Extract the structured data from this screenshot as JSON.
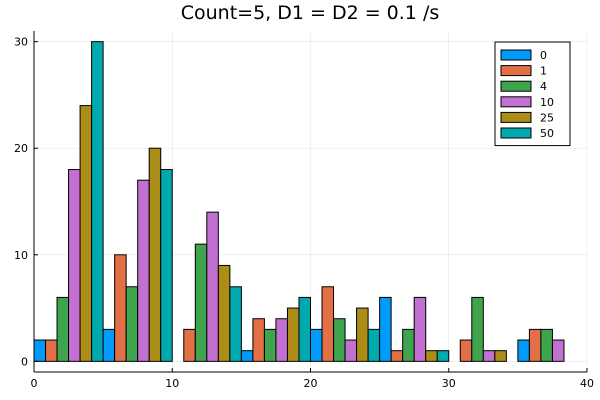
{
  "chart_data": {
    "type": "bar",
    "title": "Count=5, D1 = D2 = 0.1 /s",
    "xlabel": "",
    "ylabel": "",
    "xlim": [
      0,
      40
    ],
    "ylim": [
      -1,
      31
    ],
    "x_ticks": [
      0,
      10,
      20,
      30,
      40
    ],
    "y_ticks": [
      0,
      10,
      20,
      30
    ],
    "grid": true,
    "legend_position": "top-right",
    "bin_width": 5,
    "bin_starts": [
      0,
      5,
      10,
      15,
      20,
      25,
      30,
      35
    ],
    "series": [
      {
        "name": "0",
        "color": "#009AFA",
        "values": [
          2,
          3,
          0,
          1,
          3,
          6,
          0,
          2
        ]
      },
      {
        "name": "1",
        "color": "#E26F46",
        "values": [
          2,
          10,
          3,
          4,
          7,
          1,
          2,
          3
        ]
      },
      {
        "name": "4",
        "color": "#3EA44E",
        "values": [
          6,
          7,
          11,
          3,
          4,
          3,
          6,
          3
        ]
      },
      {
        "name": "10",
        "color": "#C271D2",
        "values": [
          18,
          17,
          14,
          4,
          2,
          6,
          1,
          2
        ]
      },
      {
        "name": "25",
        "color": "#AC8D18",
        "values": [
          24,
          20,
          9,
          5,
          5,
          1,
          1,
          0
        ]
      },
      {
        "name": "50",
        "color": "#00A9AD",
        "values": [
          30,
          18,
          7,
          6,
          3,
          1,
          0,
          0
        ]
      }
    ]
  }
}
